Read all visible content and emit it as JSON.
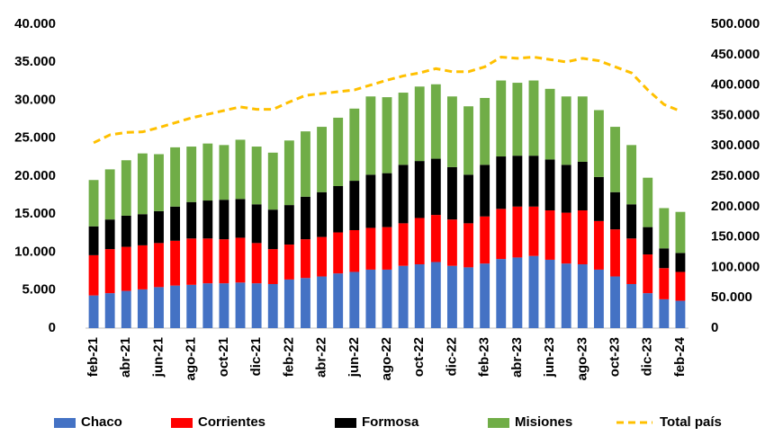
{
  "chart_data": {
    "type": "bar",
    "categories": [
      "feb-21",
      null,
      "abr-21",
      null,
      "jun-21",
      null,
      "ago-21",
      null,
      "oct-21",
      null,
      "dic-21",
      null,
      "feb-22",
      null,
      "abr-22",
      null,
      "jun-22",
      null,
      "ago-22",
      null,
      "oct-22",
      null,
      "dic-22",
      null,
      "feb-23",
      null,
      "abr-23",
      null,
      "jun-23",
      null,
      "ago-23",
      null,
      "oct-23",
      null,
      "dic-23",
      null,
      "feb-24"
    ],
    "stacked": true,
    "series": [
      {
        "name": "Chaco",
        "color": "#4472c4",
        "values": [
          4300,
          4600,
          4900,
          5100,
          5400,
          5600,
          5700,
          5900,
          5900,
          6000,
          5900,
          5800,
          6400,
          6600,
          6800,
          7200,
          7400,
          7700,
          7700,
          8200,
          8400,
          8700,
          8200,
          8000,
          8500,
          9100,
          9300,
          9500,
          9000,
          8500,
          8400,
          7700,
          6800,
          5800,
          4600,
          3800,
          3600
        ]
      },
      {
        "name": "Corrientes",
        "color": "#ff0000",
        "values": [
          5300,
          5800,
          5800,
          5800,
          5800,
          5900,
          6100,
          5900,
          5800,
          5900,
          5300,
          4600,
          4600,
          5100,
          5200,
          5400,
          5500,
          5500,
          5600,
          5600,
          6100,
          6200,
          6100,
          5800,
          6200,
          6600,
          6700,
          6500,
          6500,
          6700,
          7100,
          6400,
          6200,
          6000,
          5100,
          4100,
          3800
        ]
      },
      {
        "name": "Formosa",
        "color": "#000000",
        "values": [
          3800,
          3900,
          4100,
          4100,
          4200,
          4500,
          4800,
          5000,
          5200,
          5100,
          5100,
          5200,
          5200,
          5600,
          5900,
          6100,
          6500,
          7000,
          7100,
          7700,
          7500,
          7400,
          6900,
          6400,
          6800,
          6900,
          6700,
          6700,
          6700,
          6300,
          6400,
          5800,
          4900,
          4500,
          3600,
          2600,
          2500
        ]
      },
      {
        "name": "Misiones",
        "color": "#70ad47",
        "values": [
          6100,
          6600,
          7300,
          8000,
          7500,
          7800,
          7300,
          7500,
          7200,
          7800,
          7600,
          7500,
          8500,
          8600,
          8600,
          9000,
          9500,
          10300,
          10000,
          9500,
          9800,
          9800,
          9300,
          9000,
          8800,
          10000,
          9600,
          9900,
          9300,
          9000,
          8600,
          8800,
          8600,
          7800,
          6500,
          5300,
          5400
        ]
      },
      {
        "name": "Total país",
        "color": "#ffc000",
        "type": "line",
        "dashed": true,
        "axis": "y2",
        "values": [
          305000,
          318000,
          322000,
          323000,
          330000,
          338000,
          346000,
          352000,
          358000,
          364000,
          360000,
          360000,
          372000,
          383000,
          386000,
          389000,
          392000,
          400000,
          408000,
          415000,
          420000,
          427000,
          422000,
          422000,
          430000,
          446000,
          444000,
          446000,
          442000,
          438000,
          444000,
          440000,
          430000,
          420000,
          392000,
          368000,
          357000
        ]
      }
    ],
    "ylim": [
      0,
      40000
    ],
    "yticks": [
      0,
      {
        "value": 5000,
        "label": "5.000"
      },
      {
        "value": 10000,
        "label": "10.000"
      },
      {
        "value": 15000,
        "label": "15.000"
      },
      {
        "value": 20000,
        "label": "20.000"
      },
      {
        "value": 25000,
        "label": "25.000"
      },
      {
        "value": 30000,
        "label": "30.000"
      },
      {
        "value": 35000,
        "label": "35.000"
      },
      {
        "value": 40000,
        "label": "40.000"
      }
    ],
    "y2lim": [
      0,
      500000
    ],
    "y2ticks": [
      0,
      {
        "value": 50000,
        "label": "50.000"
      },
      {
        "value": 100000,
        "label": "100.000"
      },
      {
        "value": 150000,
        "label": "150.000"
      },
      {
        "value": 200000,
        "label": "200.000"
      },
      {
        "value": 250000,
        "label": "250.000"
      },
      {
        "value": 300000,
        "label": "300.000"
      },
      {
        "value": 350000,
        "label": "350.000"
      },
      {
        "value": 400000,
        "label": "400.000"
      },
      {
        "value": 450000,
        "label": "450.000"
      },
      {
        "value": 500000,
        "label": "500.000"
      }
    ],
    "legend": "bottom",
    "grid": false
  }
}
